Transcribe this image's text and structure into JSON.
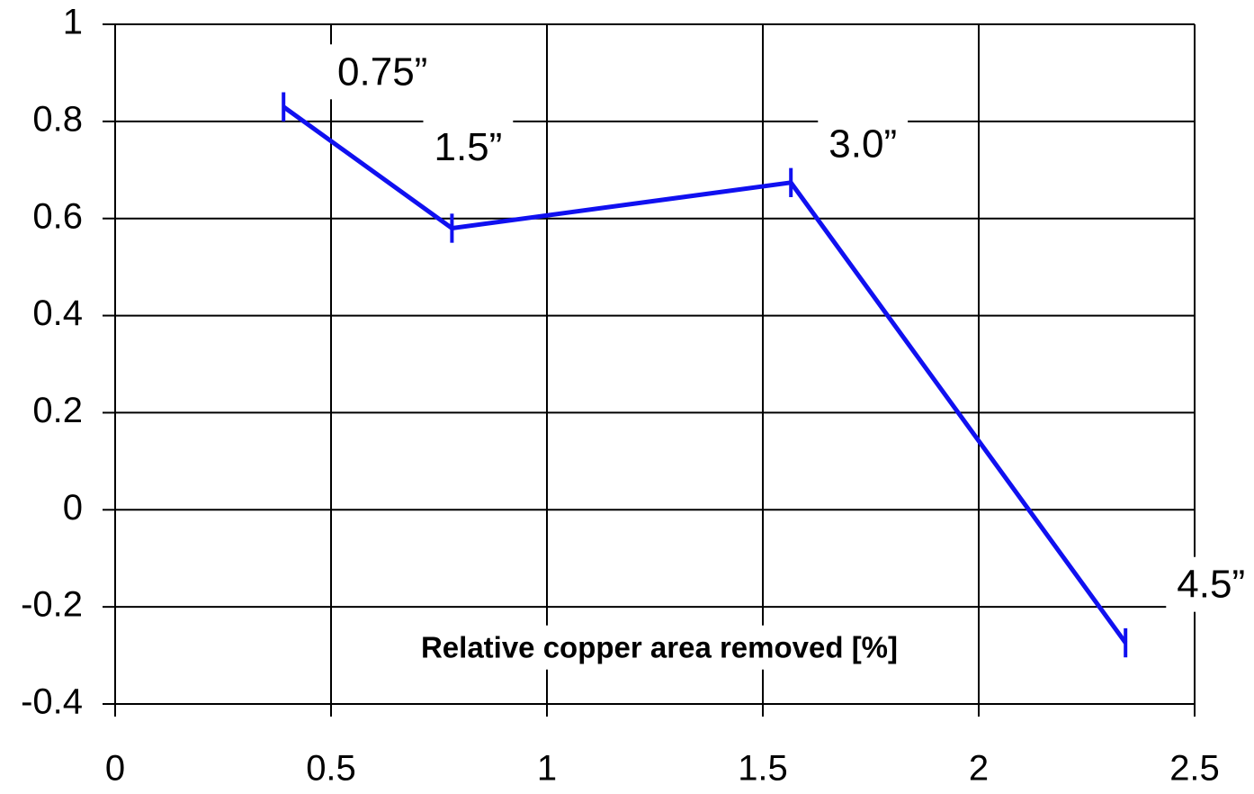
{
  "chart_data": {
    "type": "line",
    "x_label": "Relative copper area removed [%]",
    "series": [
      {
        "color": "#1010f0",
        "x": [
          0.39,
          0.78,
          1.565,
          2.34
        ],
        "values": [
          0.83,
          0.58,
          0.674,
          -0.274
        ],
        "errors": [
          0.03,
          0.03,
          0.03,
          0.03
        ],
        "point_labels": [
          "0.75”",
          "1.5”",
          "3.0”",
          "4.5”"
        ]
      }
    ],
    "xlim": [
      0,
      2.5
    ],
    "xticks": [
      0,
      0.5,
      1,
      1.5,
      2,
      2.5
    ],
    "ylim": [
      -0.4,
      1
    ],
    "yticks": [
      -0.4,
      -0.2,
      0,
      0.2,
      0.4,
      0.6,
      0.8,
      1
    ],
    "grid": true
  }
}
